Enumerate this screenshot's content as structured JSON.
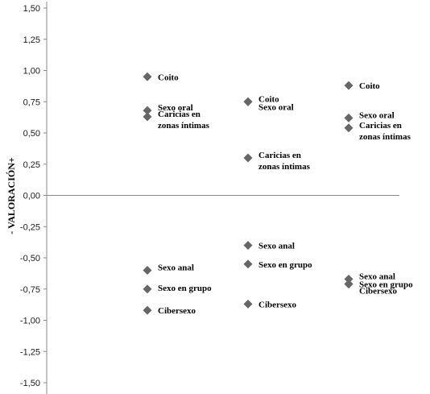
{
  "chart_data": {
    "type": "scatter",
    "title": "",
    "xlabel": "",
    "ylabel": "- VALORACIÓN+",
    "ylim": [
      -1.5,
      1.5
    ],
    "y_ticks": [
      "1,50",
      "1,25",
      "1,00",
      "0,75",
      "0,50",
      "0,25",
      "0,00",
      "-0,25",
      "-0,50",
      "-0,75",
      "-1,00",
      "-1,25",
      "-1,50"
    ],
    "x_ticks": [],
    "grid": false,
    "marker_color": "#666666",
    "groups": [
      {
        "points": [
          {
            "label": "Coito",
            "y": 0.95
          },
          {
            "label": "Sexo oral",
            "y": 0.68
          },
          {
            "label": "Caricias en zonas íntimas",
            "y": 0.63
          },
          {
            "label": "Sexo anal",
            "y": -0.6
          },
          {
            "label": "Sexo en grupo",
            "y": -0.75
          },
          {
            "label": "Cibersexo",
            "y": -0.92
          }
        ]
      },
      {
        "points": [
          {
            "label": "Coito",
            "y": 0.75
          },
          {
            "label": "Sexo oral",
            "y": 0.75
          },
          {
            "label": "Caricias en zonas íntimas",
            "y": 0.3
          },
          {
            "label": "Sexo anal",
            "y": -0.4
          },
          {
            "label": "Sexo en grupo",
            "y": -0.55
          },
          {
            "label": "Cibersexo",
            "y": -0.87
          }
        ]
      },
      {
        "points": [
          {
            "label": "Coito",
            "y": 0.88
          },
          {
            "label": "Sexo oral",
            "y": 0.62
          },
          {
            "label": "Caricias en zonas íntimas",
            "y": 0.54
          },
          {
            "label": "Sexo anal",
            "y": -0.67
          },
          {
            "label": "Sexo en grupo",
            "y": -0.71
          },
          {
            "label": "Cibersexo",
            "y": -0.71
          }
        ]
      }
    ]
  }
}
